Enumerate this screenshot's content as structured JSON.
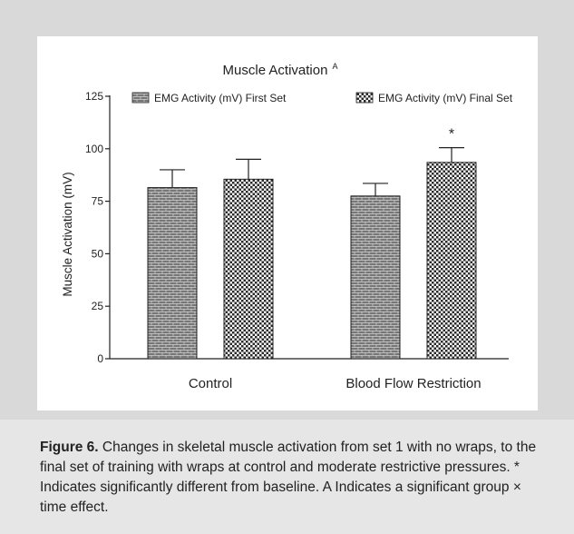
{
  "colors": {
    "outer_background": "#d9d9d9",
    "panel_background": "#ffffff",
    "caption_background": "#e6e6e6",
    "bar_stroke": "#222222",
    "axis": "#222222"
  },
  "chart_data": {
    "type": "bar",
    "title": "Muscle Activation",
    "title_superscript": "A",
    "xlabel": "",
    "ylabel": "Muscle Activation (mV)",
    "ylim": [
      0,
      125
    ],
    "yticks": [
      0,
      25,
      50,
      75,
      100,
      125
    ],
    "grid": false,
    "legend_position": "top",
    "categories": [
      "Control",
      "Blood Flow Restriction"
    ],
    "series": [
      {
        "name": "EMG Activity (mV) First Set",
        "pattern": "brick",
        "values": [
          81.5,
          77.5
        ],
        "error": [
          8.5,
          6.0
        ]
      },
      {
        "name": "EMG Activity (mV) Final Set",
        "pattern": "checker",
        "values": [
          85.5,
          93.5
        ],
        "error": [
          9.5,
          7.0
        ]
      }
    ],
    "annotations": [
      {
        "text": "*",
        "category": "Blood Flow Restriction",
        "series": "EMG Activity (mV) Final Set"
      }
    ]
  },
  "caption": {
    "label": "Figure 6.",
    "text": " Changes in skeletal muscle activation from set 1 with no wraps, to the final set of training with wraps at control and moderate restrictive pressures. * Indicates significantly different from baseline. A Indicates a significant group × time effect."
  }
}
